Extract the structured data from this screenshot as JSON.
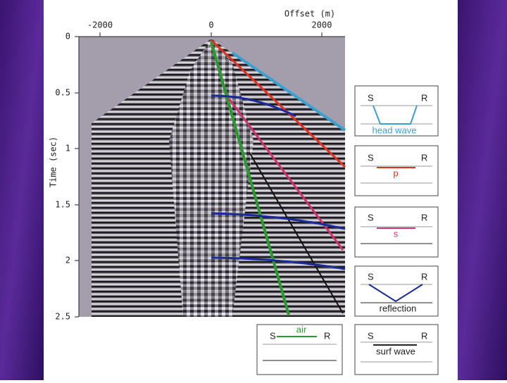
{
  "figure": {
    "x_axis": {
      "label": "Offset (m)",
      "ticks": [
        "-2000",
        "0",
        "2000"
      ]
    },
    "y_axis": {
      "label": "Time (sec)",
      "ticks": [
        "0",
        "0.5",
        "1",
        "1.5",
        "2",
        "2.5"
      ]
    },
    "legend_boxes": [
      {
        "source": "S",
        "receiver": "R",
        "label": "head wave"
      },
      {
        "source": "S",
        "receiver": "R",
        "label": "p"
      },
      {
        "source": "S",
        "receiver": "R",
        "label": "s"
      },
      {
        "source": "S",
        "receiver": "R",
        "label": "reflection"
      },
      {
        "source": "S",
        "receiver": "R",
        "label": "air"
      },
      {
        "source": "S",
        "receiver": "R",
        "label": "surf wave"
      }
    ]
  }
}
